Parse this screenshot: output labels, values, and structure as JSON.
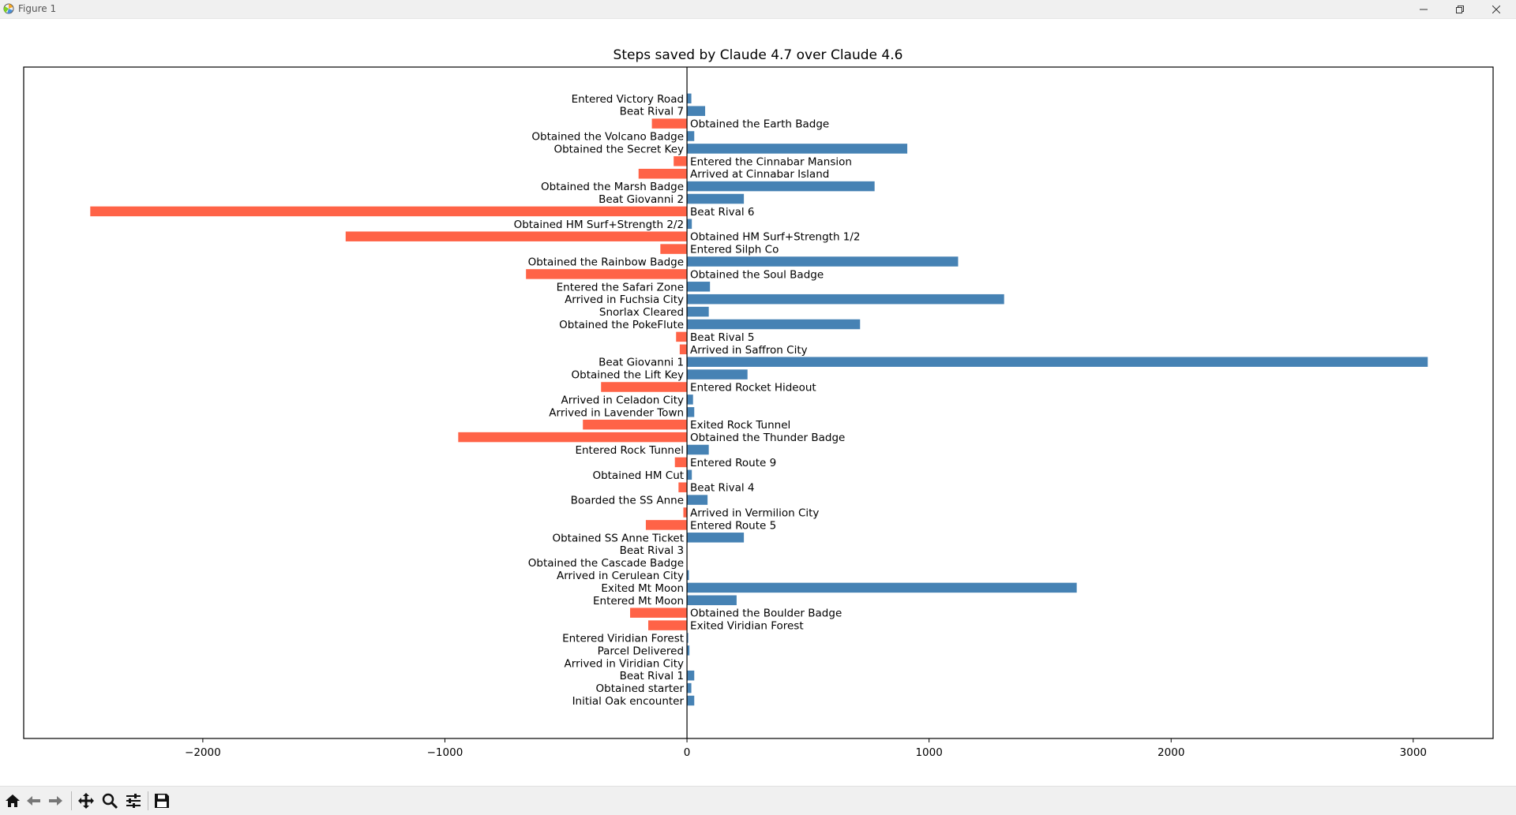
{
  "window": {
    "title": "Figure 1"
  },
  "toolbar": {
    "buttons": [
      "home-icon",
      "back-arrow-icon",
      "forward-arrow-icon",
      "pan-move-icon",
      "zoom-magnifier-icon",
      "configure-subplots-icon",
      "save-figure-icon"
    ]
  },
  "colors": {
    "positive": "#4682b4",
    "negative": "#ff6347"
  },
  "chart_data": {
    "type": "bar",
    "orientation": "horizontal",
    "title": "Steps saved by Claude 4.7 over Claude 4.6",
    "xlabel": "",
    "ylabel": "",
    "xlim": [
      -2740,
      3330
    ],
    "xticks": [
      -2000,
      -1000,
      0,
      1000,
      2000,
      3000
    ],
    "xtick_labels": [
      "−2000",
      "−1000",
      "0",
      "1000",
      "2000",
      "3000"
    ],
    "label_rule": "label left of zero line when value >= 0, right of it when value < 0",
    "categories": [
      "Initial Oak encounter",
      "Obtained starter",
      "Beat Rival 1",
      "Arrived in Viridian City",
      "Parcel Delivered",
      "Entered Viridian Forest",
      "Exited Viridian Forest",
      "Obtained the Boulder Badge",
      "Entered Mt Moon",
      "Exited Mt Moon",
      "Arrived in Cerulean City",
      "Obtained the Cascade Badge",
      "Beat Rival 3",
      "Obtained SS Anne Ticket",
      "Entered Route 5",
      "Arrived in Vermilion City",
      "Boarded the SS Anne",
      "Beat Rival 4",
      "Obtained HM Cut",
      "Entered Route 9",
      "Entered Rock Tunnel",
      "Obtained the Thunder Badge",
      "Exited Rock Tunnel",
      "Arrived in Lavender Town",
      "Arrived in Celadon City",
      "Entered Rocket Hideout",
      "Obtained the Lift Key",
      "Beat Giovanni 1",
      "Arrived in Saffron City",
      "Beat Rival 5",
      "Obtained the PokeFlute",
      "Snorlax Cleared",
      "Arrived in Fuchsia City",
      "Entered the Safari Zone",
      "Obtained the Soul Badge",
      "Obtained the Rainbow Badge",
      "Entered Silph Co",
      "Obtained HM Surf+Strength 1/2",
      "Obtained HM Surf+Strength 2/2",
      "Beat Rival 6",
      "Beat Giovanni 2",
      "Obtained the Marsh Badge",
      "Arrived at Cinnabar Island",
      "Entered the Cinnabar Mansion",
      "Obtained the Secret Key",
      "Obtained the Volcano Badge",
      "Obtained the Earth Badge",
      "Beat Rival 7",
      "Entered Victory Road"
    ],
    "values": [
      30,
      18,
      30,
      0,
      10,
      5,
      -160,
      -235,
      205,
      1610,
      8,
      0,
      0,
      235,
      -170,
      -15,
      85,
      -35,
      20,
      -50,
      90,
      -945,
      -430,
      30,
      25,
      -355,
      250,
      3060,
      -30,
      -45,
      715,
      90,
      1310,
      95,
      -665,
      1120,
      -110,
      -1410,
      20,
      -2465,
      235,
      775,
      -200,
      -55,
      910,
      30,
      -145,
      75,
      18
    ]
  }
}
